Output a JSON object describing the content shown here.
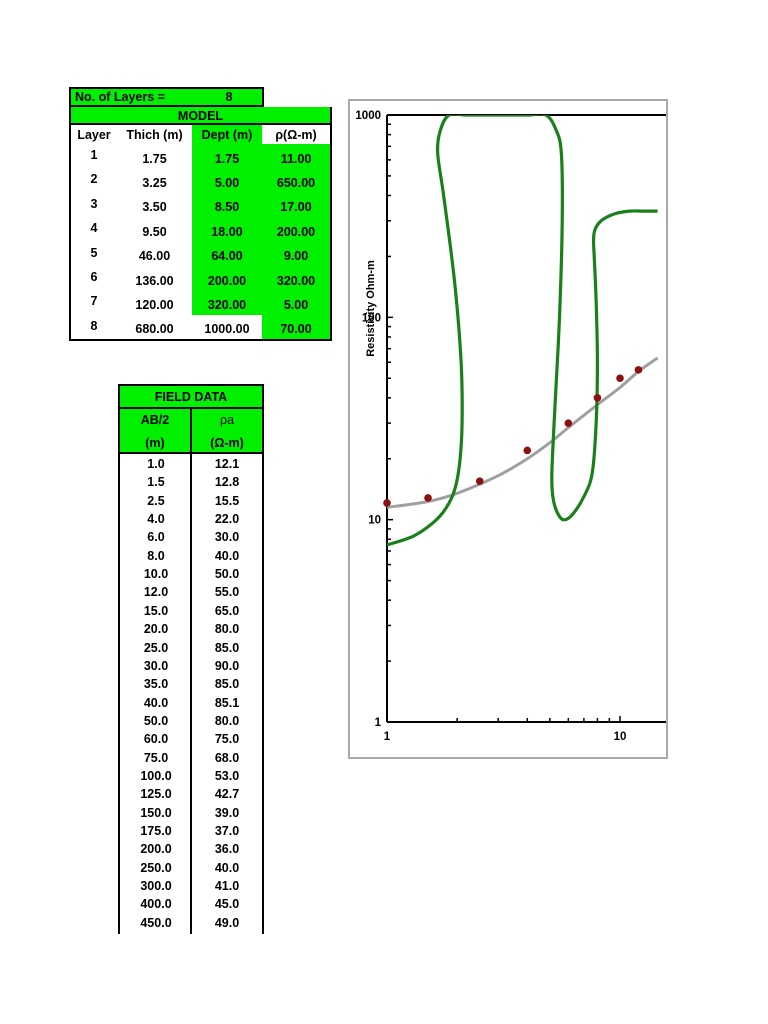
{
  "model": {
    "layers_label": "No. of Layers =",
    "layers_value": "8",
    "title": "MODEL",
    "headers": [
      "Layer",
      "Thich (m)",
      "Dept (m)",
      "ρ(Ω-m)"
    ],
    "rows": [
      {
        "layer": "1",
        "thick": "1.75",
        "depth": "1.75",
        "rho": "11.00"
      },
      {
        "layer": "2",
        "thick": "3.25",
        "depth": "5.00",
        "rho": "650.00"
      },
      {
        "layer": "3",
        "thick": "3.50",
        "depth": "8.50",
        "rho": "17.00"
      },
      {
        "layer": "4",
        "thick": "9.50",
        "depth": "18.00",
        "rho": "200.00"
      },
      {
        "layer": "5",
        "thick": "46.00",
        "depth": "64.00",
        "rho": "9.00"
      },
      {
        "layer": "6",
        "thick": "136.00",
        "depth": "200.00",
        "rho": "320.00"
      },
      {
        "layer": "7",
        "thick": "120.00",
        "depth": "320.00",
        "rho": "5.00"
      },
      {
        "layer": "8",
        "thick": "680.00",
        "depth": "1000.00",
        "rho": "70.00"
      }
    ]
  },
  "field": {
    "title": "FIELD  DATA",
    "h1a": "AB/2",
    "h1b": "(m)",
    "h2a": "ρa",
    "h2b": "(Ω-m)",
    "rows": [
      [
        "1.0",
        "12.1"
      ],
      [
        "1.5",
        "12.8"
      ],
      [
        "2.5",
        "15.5"
      ],
      [
        "4.0",
        "22.0"
      ],
      [
        "6.0",
        "30.0"
      ],
      [
        "8.0",
        "40.0"
      ],
      [
        "10.0",
        "50.0"
      ],
      [
        "12.0",
        "55.0"
      ],
      [
        "15.0",
        "65.0"
      ],
      [
        "20.0",
        "80.0"
      ],
      [
        "25.0",
        "85.0"
      ],
      [
        "30.0",
        "90.0"
      ],
      [
        "35.0",
        "85.0"
      ],
      [
        "40.0",
        "85.1"
      ],
      [
        "50.0",
        "80.0"
      ],
      [
        "60.0",
        "75.0"
      ],
      [
        "75.0",
        "68.0"
      ],
      [
        "100.0",
        "53.0"
      ],
      [
        "125.0",
        "42.7"
      ],
      [
        "150.0",
        "39.0"
      ],
      [
        "175.0",
        "37.0"
      ],
      [
        "200.0",
        "36.0"
      ],
      [
        "250.0",
        "40.0"
      ],
      [
        "300.0",
        "41.0"
      ],
      [
        "400.0",
        "45.0"
      ],
      [
        "450.0",
        "49.0"
      ]
    ]
  },
  "chart_data": {
    "type": "line",
    "ylabel": "Resistivity Ohm-m",
    "x_scale": "log",
    "y_scale": "log",
    "xlim": [
      1,
      14.5
    ],
    "ylim": [
      1,
      1000
    ],
    "x_tick_labels": [
      "1",
      "10"
    ],
    "y_tick_labels": [
      "1000",
      "100",
      "10",
      "1"
    ],
    "colors": {
      "model_curve": "#1a801a",
      "calculated_curve": "#a0a0a0",
      "field_points": "#8b1010",
      "frame": "#a8a8a8"
    },
    "field_points": {
      "x": [
        1.0,
        1.5,
        2.5,
        4.0,
        6.0,
        8.0,
        10.0,
        12.0
      ],
      "y": [
        12.1,
        12.8,
        15.5,
        22.0,
        30.0,
        40.0,
        50.0,
        55.0
      ]
    },
    "calculated_curve": {
      "x": [
        1.0,
        1.5,
        2.0,
        3.0,
        4.0,
        5.0,
        6.0,
        8.0,
        10.0,
        12.0,
        14.5
      ],
      "y": [
        11.5,
        12.3,
        13.5,
        16.5,
        20.0,
        24.0,
        28.5,
        37.0,
        45.0,
        54.0,
        63.0
      ]
    },
    "model_curve": {
      "x": [
        1.0,
        1.3,
        1.6,
        1.8,
        1.95,
        2.05,
        2.1,
        2.08,
        1.95,
        1.75,
        1.65,
        1.7,
        1.85,
        2.2,
        3.0,
        4.0,
        4.8,
        5.3,
        5.6,
        5.65,
        5.5,
        5.25,
        5.1,
        5.15,
        5.35,
        5.7,
        6.2,
        7.0,
        7.6,
        7.9,
        8.0,
        7.9,
        7.75,
        7.7,
        7.8,
        8.3,
        9.5,
        11.0,
        12.5,
        14.5
      ],
      "y": [
        7.5,
        8.3,
        9.8,
        11.5,
        14.0,
        19.0,
        30.0,
        60.0,
        150.0,
        400.0,
        650.0,
        850.0,
        1000.0,
        1000.0,
        1000.0,
        1000.0,
        1000.0,
        850.0,
        650.0,
        300.0,
        100.0,
        35.0,
        17.0,
        13.0,
        11.0,
        10.0,
        10.5,
        13.0,
        17.0,
        30.0,
        60.0,
        120.0,
        200.0,
        240.0,
        270.0,
        300.0,
        325.0,
        335.0,
        335.0,
        335.0
      ]
    }
  }
}
